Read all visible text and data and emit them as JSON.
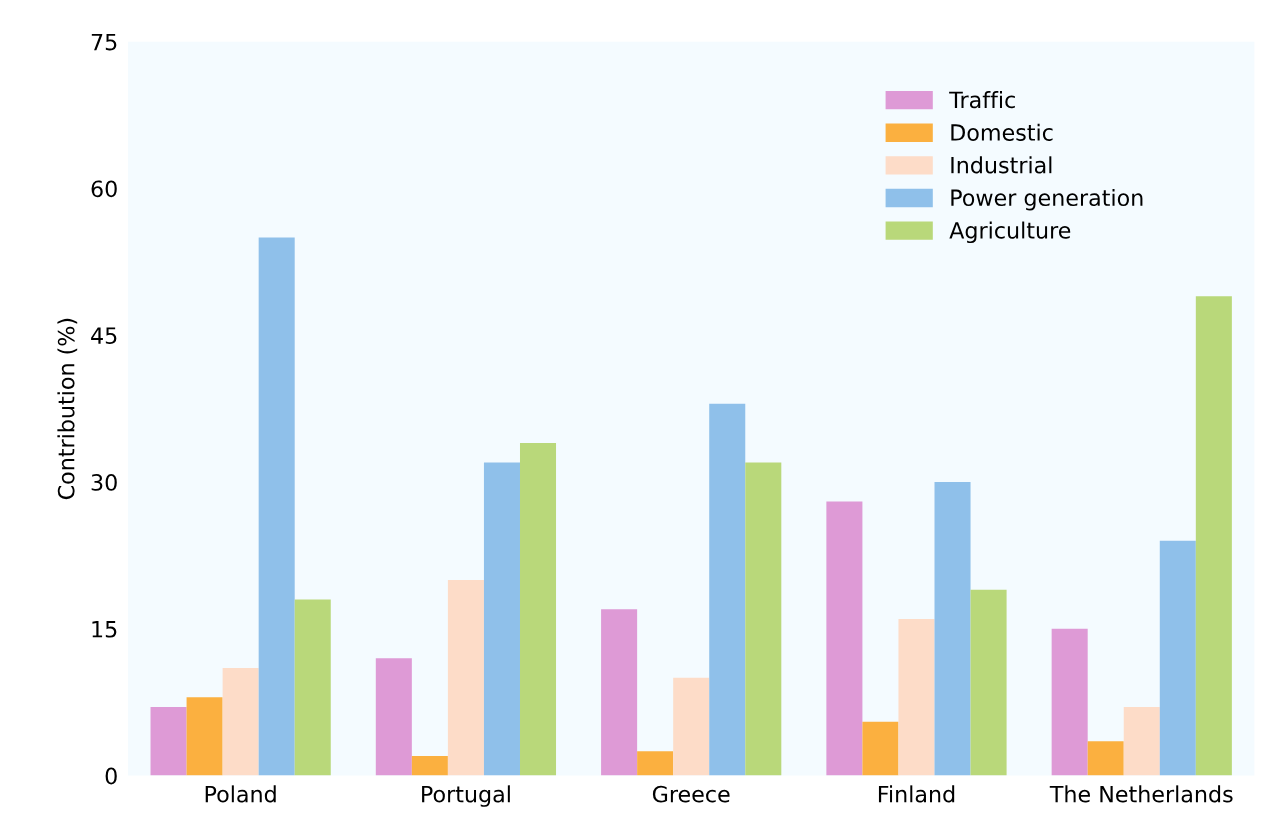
{
  "chart_data": {
    "type": "bar",
    "ylabel": "Contribution (%)",
    "categories": [
      "Poland",
      "Portugal",
      "Greece",
      "Finland",
      "The Netherlands"
    ],
    "series": [
      {
        "name": "Traffic",
        "color": "#de9ad6",
        "values": [
          7,
          12,
          17,
          28,
          15
        ]
      },
      {
        "name": "Domestic",
        "color": "#fbb040",
        "values": [
          8,
          2,
          2.5,
          5.5,
          3.5
        ]
      },
      {
        "name": "Industrial",
        "color": "#fddcc8",
        "values": [
          11,
          20,
          10,
          16,
          7
        ]
      },
      {
        "name": "Power generation",
        "color": "#8fc0ea",
        "values": [
          55,
          32,
          38,
          30,
          24
        ]
      },
      {
        "name": "Agriculture",
        "color": "#b9d87a",
        "values": [
          18,
          34,
          32,
          19,
          49
        ]
      }
    ],
    "ylim": [
      0,
      75
    ],
    "yticks": [
      0,
      15,
      30,
      45,
      60,
      75
    ],
    "grid": false,
    "legend": "top right"
  }
}
